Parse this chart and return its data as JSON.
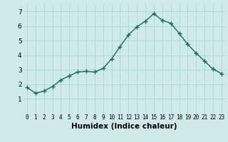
{
  "x": [
    0,
    1,
    2,
    3,
    4,
    5,
    6,
    7,
    8,
    9,
    10,
    11,
    12,
    13,
    14,
    15,
    16,
    17,
    18,
    19,
    20,
    21,
    22,
    23
  ],
  "y": [
    1.8,
    1.4,
    1.55,
    1.85,
    2.3,
    2.6,
    2.85,
    2.9,
    2.85,
    3.1,
    3.75,
    4.6,
    5.4,
    5.95,
    6.35,
    6.85,
    6.4,
    6.2,
    5.5,
    4.75,
    4.15,
    3.6,
    3.05,
    2.75
  ],
  "xlabel": "Humidex (Indice chaleur)",
  "ylim": [
    0,
    7.5
  ],
  "xlim": [
    -0.5,
    23.5
  ],
  "yticks": [
    1,
    2,
    3,
    4,
    5,
    6,
    7
  ],
  "xticks": [
    0,
    1,
    2,
    3,
    4,
    5,
    6,
    7,
    8,
    9,
    10,
    11,
    12,
    13,
    14,
    15,
    16,
    17,
    18,
    19,
    20,
    21,
    22,
    23
  ],
  "line_color": "#1a6b5a",
  "marker_color": "#1a6b5a",
  "bg_color": "#ceeaea",
  "grid_color": "#b0d4d4",
  "font_color": "#000000",
  "xlabel_fontsize": 7.5,
  "tick_fontsize": 5.5,
  "ytick_fontsize": 6.5
}
